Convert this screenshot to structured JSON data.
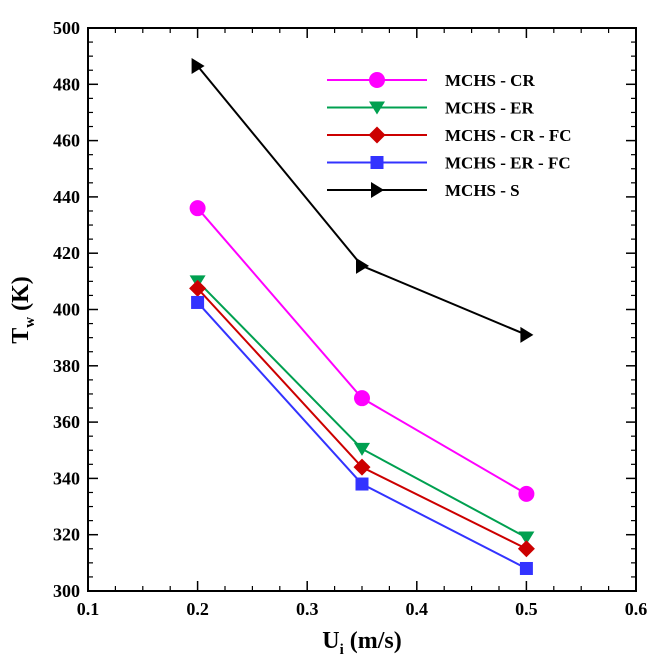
{
  "chart_data": {
    "type": "line",
    "title": "",
    "xlabel": {
      "main": "U",
      "sub": "i",
      "rest": " (m/s)"
    },
    "ylabel": {
      "main": "T",
      "sub": "w",
      "rest": " (K)"
    },
    "xlim": [
      0.1,
      0.6
    ],
    "ylim": [
      300,
      500
    ],
    "xticks": [
      0.1,
      0.2,
      0.3,
      0.4,
      0.5,
      0.6
    ],
    "yticks": [
      300,
      320,
      340,
      360,
      380,
      400,
      420,
      440,
      460,
      480,
      500
    ],
    "xtick_labels": [
      "0.1",
      "0.2",
      "0.3",
      "0.4",
      "0.5",
      "0.6"
    ],
    "ytick_labels": [
      "300",
      "320",
      "340",
      "360",
      "380",
      "400",
      "420",
      "440",
      "460",
      "480",
      "500"
    ],
    "grid": false,
    "legend_position": "top-right",
    "x": [
      0.2,
      0.35,
      0.5
    ],
    "series": [
      {
        "name": "MCHS - CR",
        "values": [
          436,
          368.5,
          334.5
        ],
        "color": "#ff00ff",
        "marker": "circle"
      },
      {
        "name": "MCHS - ER",
        "values": [
          410,
          350.5,
          319
        ],
        "color": "#00a050",
        "marker": "triangle-down"
      },
      {
        "name": "MCHS - CR - FC",
        "values": [
          407.5,
          344,
          315
        ],
        "color": "#cc0000",
        "marker": "diamond"
      },
      {
        "name": "MCHS - ER - FC",
        "values": [
          402.5,
          338,
          308
        ],
        "color": "#3333ff",
        "marker": "square"
      },
      {
        "name": "MCHS - S",
        "values": [
          486.5,
          415.5,
          391
        ],
        "color": "#000000",
        "marker": "triangle-right"
      }
    ]
  }
}
